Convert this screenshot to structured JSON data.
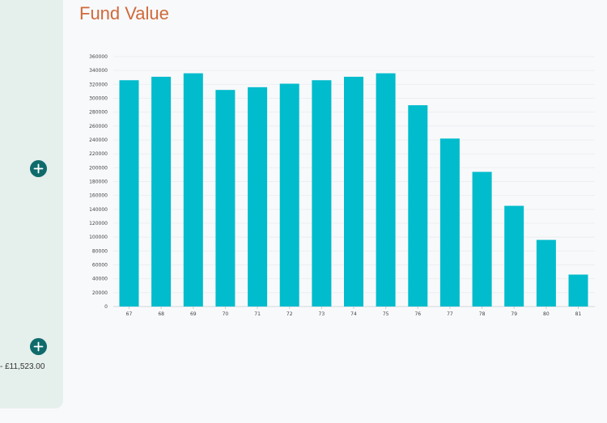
{
  "page": {
    "title": "Fund Value"
  },
  "sidebar": {
    "amount_text": "- £11,523.00",
    "buttons": [
      {
        "icon": "plus-icon"
      },
      {
        "icon": "plus-icon"
      }
    ]
  },
  "colors": {
    "bar": "#00bccd",
    "title": "#d0693a",
    "button": "#0f6b6b",
    "panel": "#e5efec"
  },
  "chart_data": {
    "type": "bar",
    "title": "Fund Value",
    "xlabel": "",
    "ylabel": "",
    "categories": [
      "67",
      "68",
      "69",
      "70",
      "71",
      "72",
      "73",
      "74",
      "75",
      "76",
      "77",
      "78",
      "79",
      "80",
      "81"
    ],
    "values": [
      326000,
      331000,
      336000,
      312000,
      316000,
      321000,
      326000,
      331000,
      336000,
      290000,
      242000,
      194000,
      145000,
      96000,
      46000
    ],
    "yticks": [
      0,
      20000,
      40000,
      60000,
      80000,
      100000,
      120000,
      140000,
      160000,
      180000,
      200000,
      220000,
      240000,
      260000,
      280000,
      300000,
      320000,
      340000,
      360000
    ],
    "ylim": [
      0,
      360000
    ],
    "grid": true,
    "legend": "none"
  }
}
